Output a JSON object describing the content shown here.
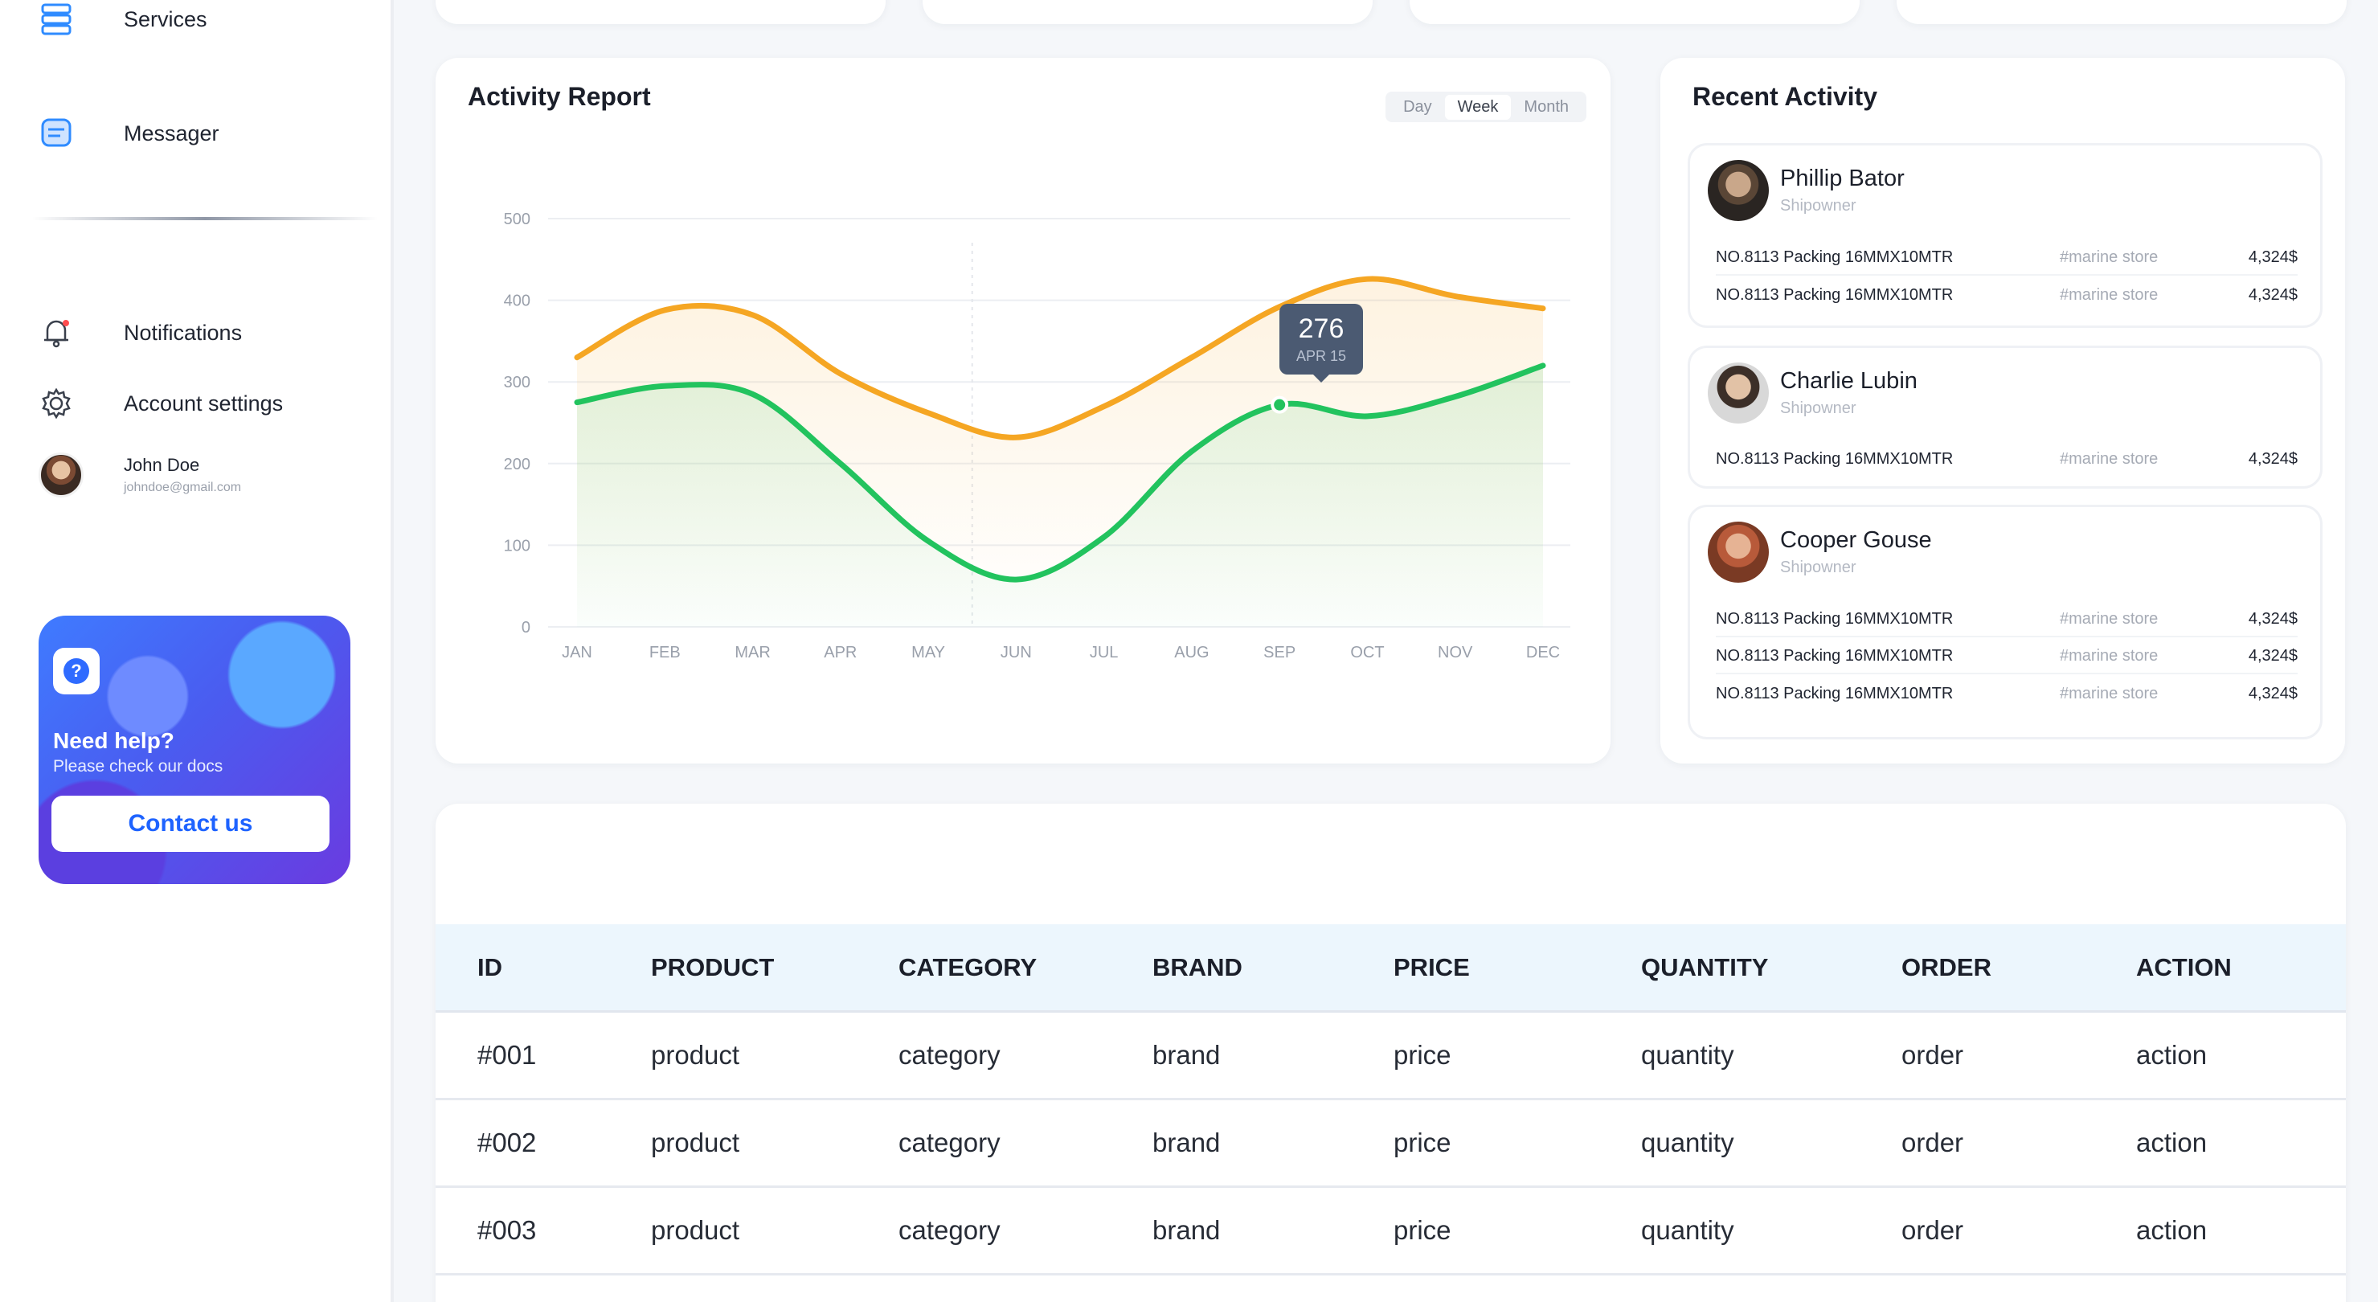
{
  "sidebar": {
    "items": [
      {
        "label": "Services",
        "icon": "server-icon"
      },
      {
        "label": "Messager",
        "icon": "message-icon"
      },
      {
        "label": "Notifications",
        "icon": "bell-icon"
      },
      {
        "label": "Account settings",
        "icon": "gear-icon"
      }
    ],
    "user": {
      "name": "John Doe",
      "email": "johndoe@gmail.com"
    },
    "help": {
      "title": "Need help?",
      "subtitle": "Please check our docs",
      "button": "Contact us"
    }
  },
  "activity_report": {
    "title": "Activity Report",
    "ranges": [
      "Day",
      "Week",
      "Month"
    ],
    "selected_range": "Week",
    "tooltip": {
      "value": "276",
      "date": "APR 15"
    }
  },
  "chart_data": {
    "type": "line",
    "categories": [
      "JAN",
      "FEB",
      "MAR",
      "APR",
      "MAY",
      "JUN",
      "JUL",
      "AUG",
      "SEP",
      "OCT",
      "NOV",
      "DEC"
    ],
    "y_ticks": [
      "500",
      "400",
      "300",
      "200",
      "100",
      "0"
    ],
    "ylim": [
      0,
      500
    ],
    "grid": true,
    "series": [
      {
        "color": "#f5a623",
        "values": [
          330,
          388,
          382,
          310,
          262,
          232,
          270,
          330,
          392,
          426,
          405,
          390
        ]
      },
      {
        "color": "#22c35e",
        "values": [
          275,
          295,
          285,
          200,
          105,
          58,
          110,
          215,
          272,
          258,
          282,
          320
        ]
      }
    ]
  },
  "recent_activity": {
    "title": "Recent Activity",
    "entries": [
      {
        "name": "Phillip Bator",
        "role": "Shipowner",
        "items": [
          {
            "desc": "NO.8113 Packing 16MMX10MTR",
            "store": "#marine store",
            "price": "4,324$"
          },
          {
            "desc": "NO.8113 Packing 16MMX10MTR",
            "store": "#marine store",
            "price": "4,324$"
          }
        ]
      },
      {
        "name": "Charlie Lubin",
        "role": "Shipowner",
        "items": [
          {
            "desc": "NO.8113 Packing 16MMX10MTR",
            "store": "#marine store",
            "price": "4,324$"
          }
        ]
      },
      {
        "name": "Cooper Gouse",
        "role": "Shipowner",
        "items": [
          {
            "desc": "NO.8113 Packing 16MMX10MTR",
            "store": "#marine store",
            "price": "4,324$"
          },
          {
            "desc": "NO.8113 Packing 16MMX10MTR",
            "store": "#marine store",
            "price": "4,324$"
          },
          {
            "desc": "NO.8113 Packing 16MMX10MTR",
            "store": "#marine store",
            "price": "4,324$"
          }
        ]
      }
    ]
  },
  "table": {
    "headers": [
      "ID",
      "PRODUCT",
      "CATEGORY",
      "BRAND",
      "PRICE",
      "QUANTITY",
      "ORDER",
      "ACTION"
    ],
    "rows": [
      [
        "#001",
        "product",
        "category",
        "brand",
        "price",
        "quantity",
        "order",
        "action"
      ],
      [
        "#002",
        "product",
        "category",
        "brand",
        "price",
        "quantity",
        "order",
        "action"
      ],
      [
        "#003",
        "product",
        "category",
        "brand",
        "price",
        "quantity",
        "order",
        "action"
      ]
    ]
  }
}
